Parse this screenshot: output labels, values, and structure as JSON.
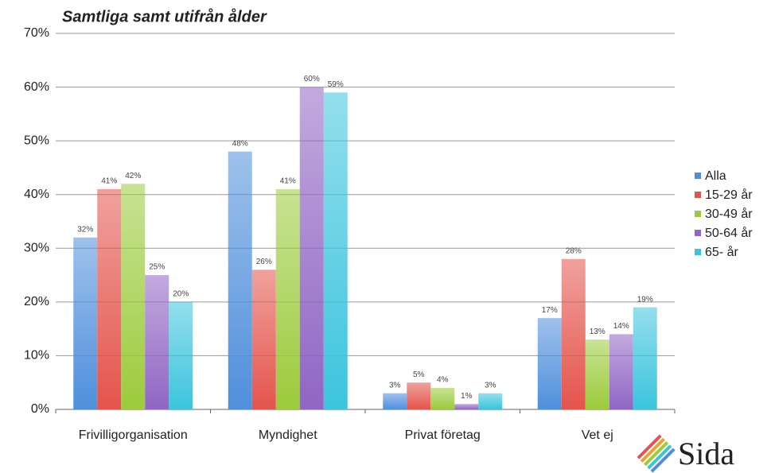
{
  "chart_data": {
    "type": "bar",
    "title": "Samtliga samt utifrån ålder",
    "categories": [
      "Frivilligorganisation",
      "Myndighet",
      "Privat företag",
      "Vet ej"
    ],
    "series": [
      {
        "name": "Alla",
        "color": "#4f8fdc",
        "values": [
          32,
          48,
          3,
          17
        ],
        "value_labels": [
          "32%",
          "48%",
          "3%",
          "17%"
        ]
      },
      {
        "name": "15-29 år",
        "color": "#e4544c",
        "values": [
          41,
          26,
          5,
          28
        ],
        "value_labels": [
          "41%",
          "26%",
          "5%",
          "28%"
        ]
      },
      {
        "name": "30-49 år",
        "color": "#9ccb3c",
        "values": [
          42,
          41,
          4,
          13
        ],
        "value_labels": [
          "42%",
          "41%",
          "4%",
          "13%"
        ]
      },
      {
        "name": "50-64 år",
        "color": "#9065c4",
        "values": [
          25,
          60,
          1,
          14
        ],
        "value_labels": [
          "25%",
          "60%",
          "1%",
          "14%"
        ]
      },
      {
        "name": "65- år",
        "color": "#3cc4de",
        "values": [
          20,
          59,
          3,
          19
        ],
        "value_labels": [
          "20%",
          "59%",
          "3%",
          "19%"
        ]
      }
    ],
    "ylim": [
      0,
      70
    ],
    "yticks": [
      {
        "value": 0,
        "label": "0%"
      },
      {
        "value": 10,
        "label": "10%"
      },
      {
        "value": 20,
        "label": "20%"
      },
      {
        "value": 30,
        "label": "30%"
      },
      {
        "value": 40,
        "label": "40%"
      },
      {
        "value": 50,
        "label": "50%"
      },
      {
        "value": 60,
        "label": "60%"
      },
      {
        "value": 70,
        "label": "70%"
      }
    ],
    "grid": true,
    "legend": "right"
  },
  "logo": {
    "text": "Sida"
  }
}
